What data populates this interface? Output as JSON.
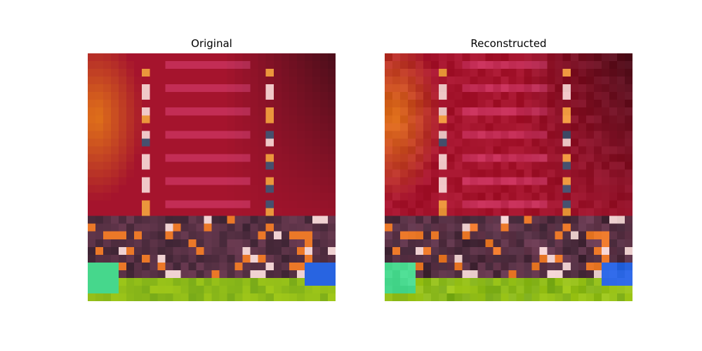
{
  "panels": [
    {
      "title": "Original"
    },
    {
      "title": "Reconstructed"
    }
  ],
  "palette": {
    "bg_red": "#a4122e",
    "bg_dark": "#4a1420",
    "bg_orange": "#d86a1a",
    "crowd_dark": "#3a2a38",
    "grass": "#7fb41c",
    "green_block": "#3ed88a",
    "blue_block": "#2a66e0"
  }
}
